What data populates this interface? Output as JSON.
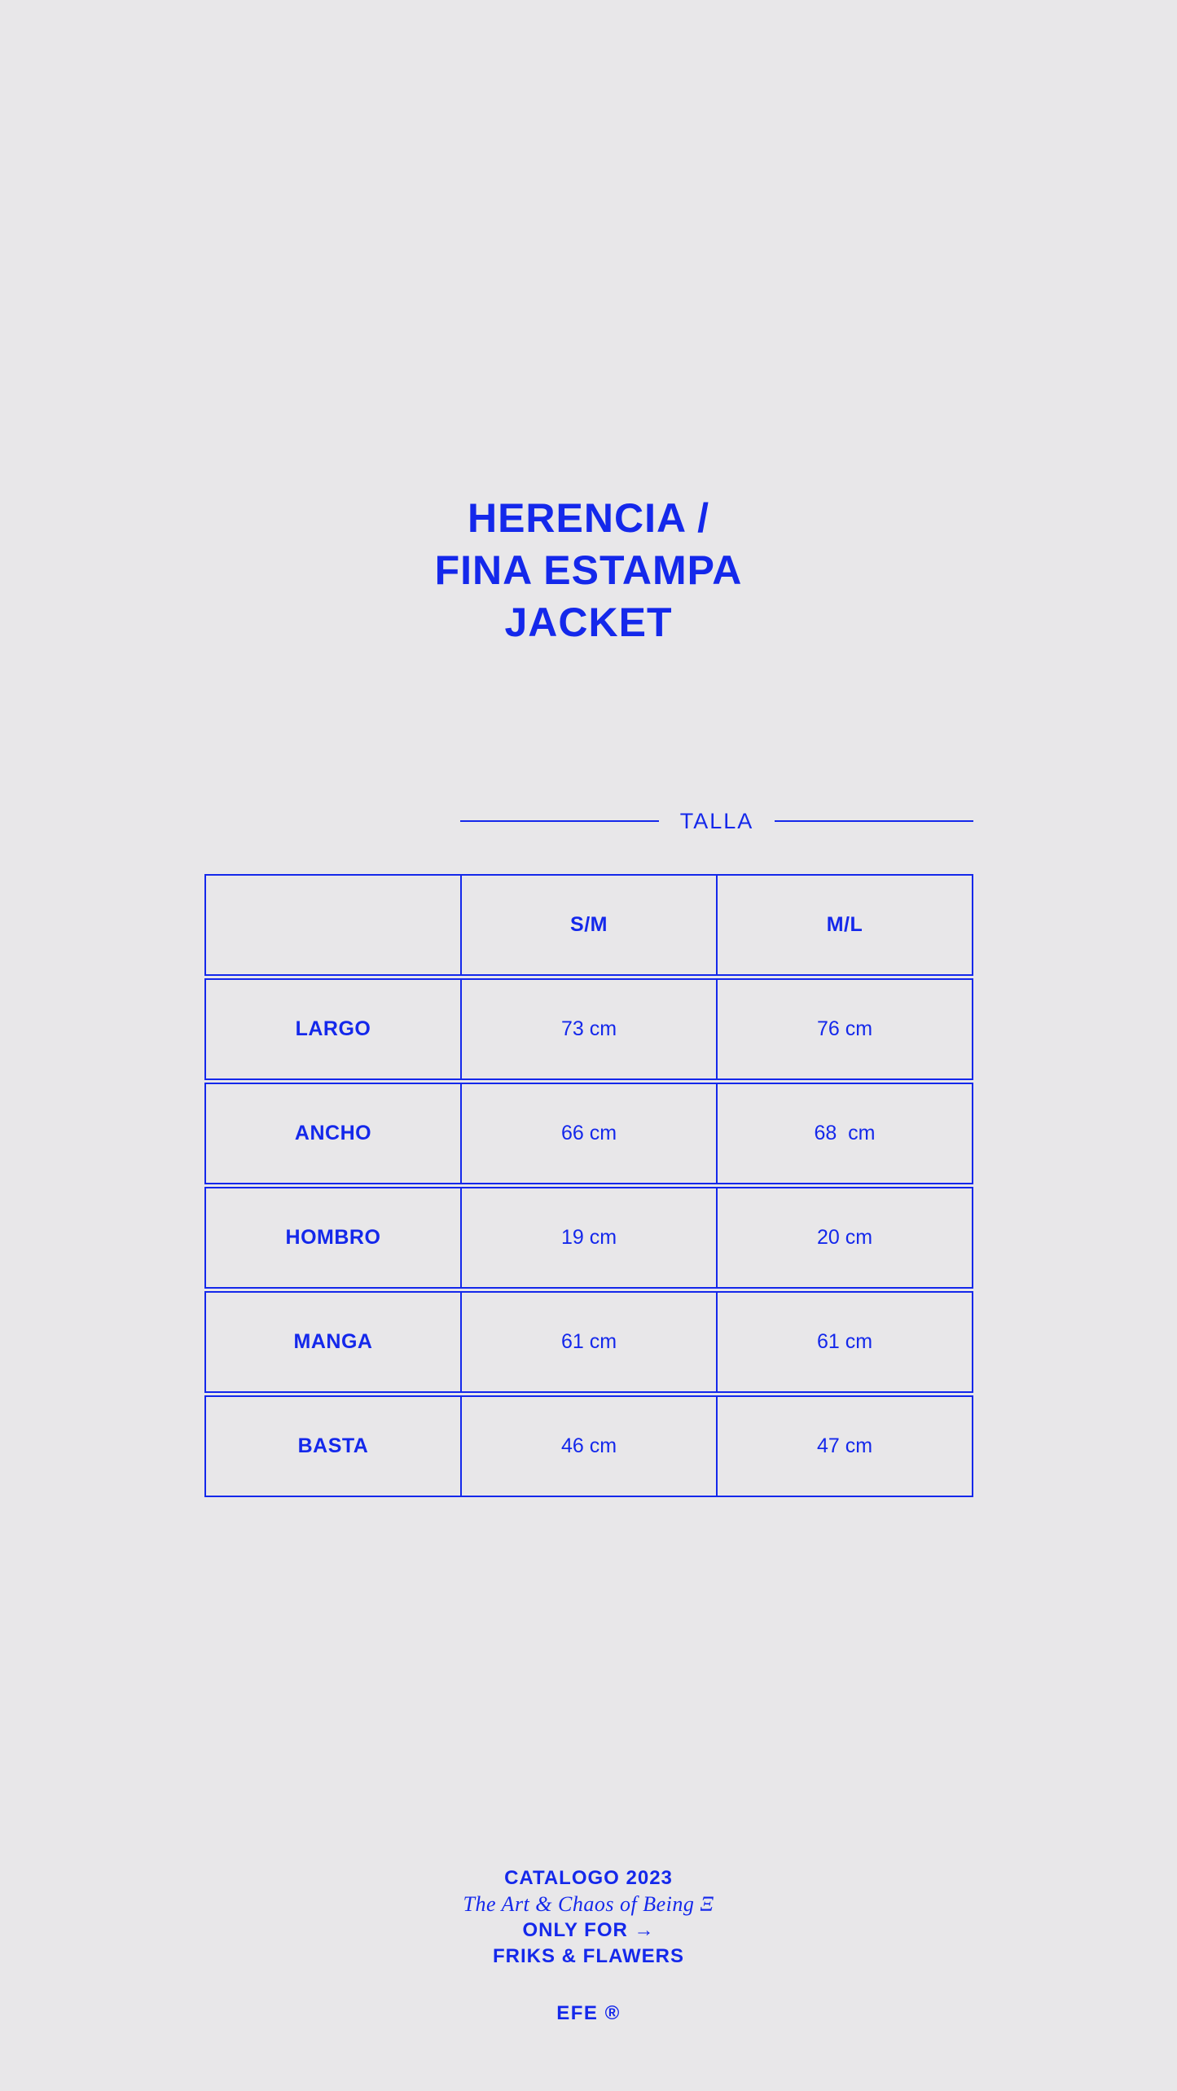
{
  "colors": {
    "accent_blue": "#1428eb",
    "background_gray": "#e8e7e9"
  },
  "title": {
    "lines": [
      "HERENCIA /",
      "FINA ESTAMPA",
      "JACKET"
    ]
  },
  "size_section": {
    "label": "TALLA"
  },
  "size_table": {
    "columns": [
      "",
      "S/M",
      "M/L"
    ],
    "rows": [
      {
        "label": "LARGO",
        "values": [
          "73 cm",
          "76 cm"
        ]
      },
      {
        "label": "ANCHO",
        "values": [
          "66 cm",
          "68  cm"
        ]
      },
      {
        "label": "HOMBRO",
        "values": [
          "19 cm",
          "20 cm"
        ]
      },
      {
        "label": "MANGA",
        "values": [
          "61 cm",
          "61 cm"
        ]
      },
      {
        "label": "BASTA",
        "values": [
          "46 cm",
          "47 cm"
        ]
      }
    ]
  },
  "footer": {
    "catalog_line": "CATALOGO 2023",
    "tagline": "The Art & Chaos of Being Ξ",
    "only_for_line": "ONLY FOR →",
    "client_line": "FRIKS & FLAWERS",
    "brand": "EFE ®"
  }
}
